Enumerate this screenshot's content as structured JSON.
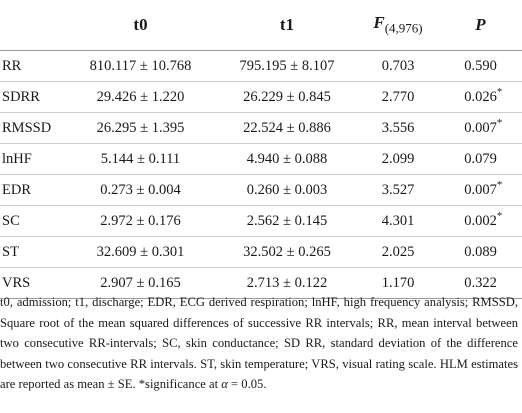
{
  "table": {
    "header": {
      "col1": "t0",
      "col2": "t1",
      "col3_main": "F",
      "col3_sub": "(4,976)",
      "col4": "P"
    },
    "rows": [
      {
        "label": "RR",
        "t0": "810.117 ± 10.768",
        "t1": "795.195 ± 8.107",
        "f": "0.703",
        "p": "0.590",
        "sig": ""
      },
      {
        "label": "SDRR",
        "t0": "29.426 ± 1.220",
        "t1": "26.229 ± 0.845",
        "f": "2.770",
        "p": "0.026",
        "sig": "*"
      },
      {
        "label": "RMSSD",
        "t0": "26.295 ± 1.395",
        "t1": "22.524 ± 0.886",
        "f": "3.556",
        "p": "0.007",
        "sig": "*"
      },
      {
        "label": "lnHF",
        "t0": "5.144 ± 0.111",
        "t1": "4.940 ± 0.088",
        "f": "2.099",
        "p": "0.079",
        "sig": ""
      },
      {
        "label": "EDR",
        "t0": "0.273 ± 0.004",
        "t1": "0.260 ± 0.003",
        "f": "3.527",
        "p": "0.007",
        "sig": "*"
      },
      {
        "label": "SC",
        "t0": "2.972 ± 0.176",
        "t1": "2.562 ± 0.145",
        "f": "4.301",
        "p": "0.002",
        "sig": "*"
      },
      {
        "label": "ST",
        "t0": "32.609 ± 0.301",
        "t1": "32.502 ± 0.265",
        "f": "2.025",
        "p": "0.089",
        "sig": ""
      },
      {
        "label": "VRS",
        "t0": "2.907 ± 0.165",
        "t1": "2.713 ± 0.122",
        "f": "1.170",
        "p": "0.322",
        "sig": ""
      }
    ]
  },
  "footnote": {
    "text": "t0, admission; t1, discharge; EDR, ECG derived respiration; lnHF, high frequency analysis; RMSSD, Square root of the mean squared differences of successive RR intervals; RR, mean interval between two consecutive RR-intervals; SC, skin conductance; SD RR, standard deviation of the difference between two consecutive RR intervals. ST, skin temperature; VRS, visual rating scale. HLM estimates are reported as mean ± SE. *significance at",
    "alpha_symbol": "α",
    "alpha_value": " = 0.05."
  }
}
